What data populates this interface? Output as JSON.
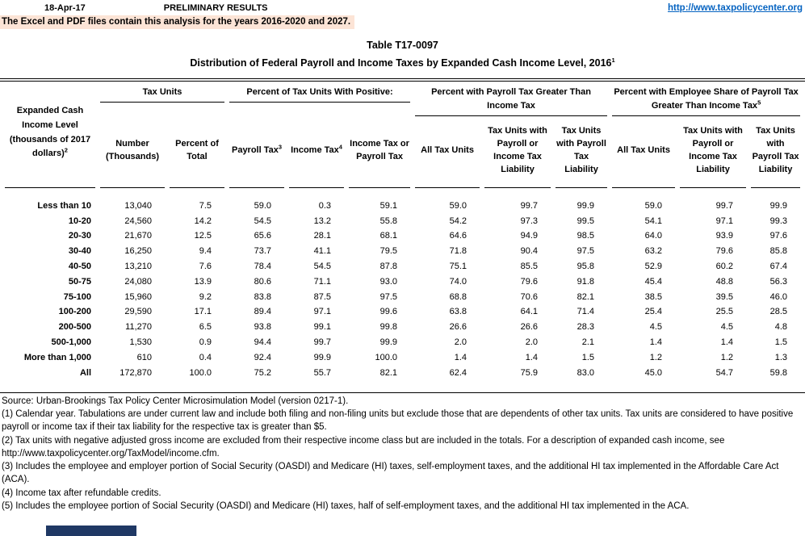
{
  "header": {
    "date": "18-Apr-17",
    "status": "PRELIMINARY RESULTS",
    "link": "http://www.taxpolicycenter.org",
    "note": "The Excel and PDF files contain this analysis for the years 2016-2020 and 2027."
  },
  "title": {
    "line1": "Table T17-0097",
    "line2": "Distribution of Federal Payroll and Income Taxes by Expanded Cash Income Level, 2016",
    "line2_sup": "1"
  },
  "table": {
    "corner_header": {
      "label": "Expanded Cash Income Level (thousands of 2017 dollars)",
      "sup": "2"
    },
    "groups": [
      {
        "label": "Tax Units",
        "sup": ""
      },
      {
        "label": "Percent of Tax Units With Positive:",
        "sup": ""
      },
      {
        "label": "Percent with Payroll Tax Greater Than Income Tax",
        "sup": ""
      },
      {
        "label": "Percent with Employee Share of Payroll Tax Greater Than Income Tax",
        "sup": "5"
      }
    ],
    "columns": [
      {
        "label": "Number (Thousands)",
        "sup": ""
      },
      {
        "label": "Percent of Total",
        "sup": ""
      },
      {
        "label": "Payroll Tax",
        "sup": "3"
      },
      {
        "label": "Income Tax",
        "sup": "4"
      },
      {
        "label": "Income Tax or Payroll Tax",
        "sup": ""
      },
      {
        "label": "All Tax Units",
        "sup": ""
      },
      {
        "label": "Tax Units with Payroll or Income Tax Liability",
        "sup": ""
      },
      {
        "label": "Tax Units with Payroll Tax Liability",
        "sup": ""
      },
      {
        "label": "All Tax Units",
        "sup": ""
      },
      {
        "label": "Tax Units with Payroll or Income Tax Liability",
        "sup": ""
      },
      {
        "label": "Tax Units with Payroll Tax Liability",
        "sup": ""
      }
    ],
    "rows": [
      {
        "label": "Less than 10",
        "values": [
          "13,040",
          "7.5",
          "59.0",
          "0.3",
          "59.1",
          "59.0",
          "99.7",
          "99.9",
          "59.0",
          "99.7",
          "99.9"
        ]
      },
      {
        "label": "10-20",
        "values": [
          "24,560",
          "14.2",
          "54.5",
          "13.2",
          "55.8",
          "54.2",
          "97.3",
          "99.5",
          "54.1",
          "97.1",
          "99.3"
        ]
      },
      {
        "label": "20-30",
        "values": [
          "21,670",
          "12.5",
          "65.6",
          "28.1",
          "68.1",
          "64.6",
          "94.9",
          "98.5",
          "64.0",
          "93.9",
          "97.6"
        ]
      },
      {
        "label": "30-40",
        "values": [
          "16,250",
          "9.4",
          "73.7",
          "41.1",
          "79.5",
          "71.8",
          "90.4",
          "97.5",
          "63.2",
          "79.6",
          "85.8"
        ]
      },
      {
        "label": "40-50",
        "values": [
          "13,210",
          "7.6",
          "78.4",
          "54.5",
          "87.8",
          "75.1",
          "85.5",
          "95.8",
          "52.9",
          "60.2",
          "67.4"
        ]
      },
      {
        "label": "50-75",
        "values": [
          "24,080",
          "13.9",
          "80.6",
          "71.1",
          "93.0",
          "74.0",
          "79.6",
          "91.8",
          "45.4",
          "48.8",
          "56.3"
        ]
      },
      {
        "label": "75-100",
        "values": [
          "15,960",
          "9.2",
          "83.8",
          "87.5",
          "97.5",
          "68.8",
          "70.6",
          "82.1",
          "38.5",
          "39.5",
          "46.0"
        ]
      },
      {
        "label": "100-200",
        "values": [
          "29,590",
          "17.1",
          "89.4",
          "97.1",
          "99.6",
          "63.8",
          "64.1",
          "71.4",
          "25.4",
          "25.5",
          "28.5"
        ]
      },
      {
        "label": "200-500",
        "values": [
          "11,270",
          "6.5",
          "93.8",
          "99.1",
          "99.8",
          "26.6",
          "26.6",
          "28.3",
          "4.5",
          "4.5",
          "4.8"
        ]
      },
      {
        "label": "500-1,000",
        "values": [
          "1,530",
          "0.9",
          "94.4",
          "99.7",
          "99.9",
          "2.0",
          "2.0",
          "2.1",
          "1.4",
          "1.4",
          "1.5"
        ]
      },
      {
        "label": "More than 1,000",
        "values": [
          "610",
          "0.4",
          "92.4",
          "99.9",
          "100.0",
          "1.4",
          "1.4",
          "1.5",
          "1.2",
          "1.2",
          "1.3"
        ]
      },
      {
        "label": "All",
        "values": [
          "172,870",
          "100.0",
          "75.2",
          "55.7",
          "82.1",
          "62.4",
          "75.9",
          "83.0",
          "45.0",
          "54.7",
          "59.8"
        ]
      }
    ]
  },
  "footnotes": [
    "Source: Urban-Brookings Tax Policy Center Microsimulation Model (version 0217-1).",
    "(1) Calendar year. Tabulations are under current law and include both filing and non-filing units but exclude those that are dependents of other tax units.  Tax units are considered to have positive payroll or income tax if their tax liability for the respective tax is greater than $5.",
    "(2) Tax units with negative adjusted gross income are excluded from their respective income class but are included in the totals. For a description of expanded cash income, see http://www.taxpolicycenter.org/TaxModel/income.cfm.",
    "(3) Includes the employee and employer portion of Social Security (OASDI) and Medicare (HI) taxes, self-employment taxes, and the additional HI tax implemented in the Affordable Care Act (ACA).",
    "(4) Income tax after refundable credits.",
    "(5) Includes the employee portion of Social Security (OASDI) and Medicare (HI) taxes, half of self-employment taxes, and the additional HI tax implemented in the ACA."
  ],
  "colors": {
    "note_background": "#fce4d6",
    "link_blue": "#0563c1",
    "sheet_tab_navy": "#1f3864",
    "text": "#000000"
  }
}
